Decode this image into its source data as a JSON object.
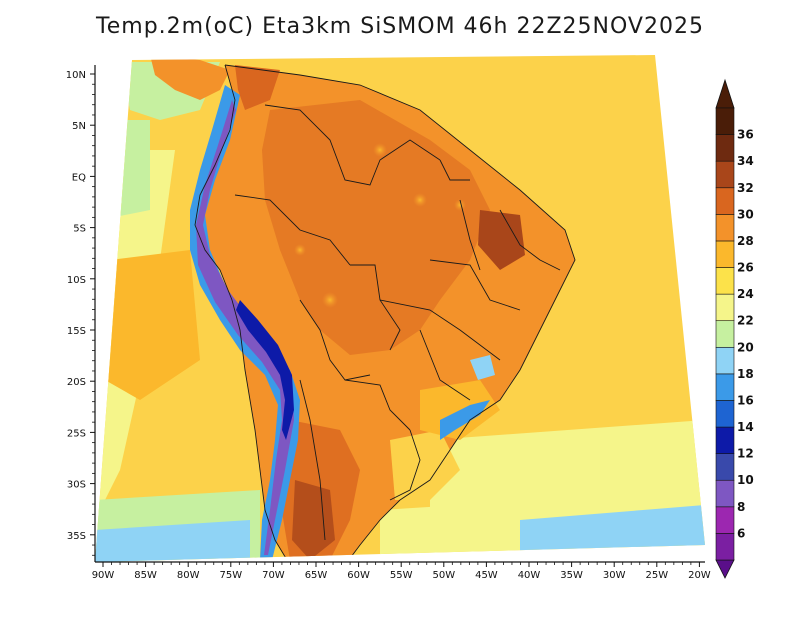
{
  "title": "Temp.2m(oC) Eta3km SiSMOM 46h 22Z25NOV2025",
  "lat_labels": [
    "10N",
    "5N",
    "EQ",
    "5S",
    "10S",
    "15S",
    "20S",
    "25S",
    "30S",
    "35S"
  ],
  "lon_labels": [
    "90W",
    "85W",
    "80W",
    "75W",
    "70W",
    "65W",
    "60W",
    "55W",
    "50W",
    "45W",
    "40W",
    "35W",
    "30W",
    "25W",
    "20W"
  ],
  "colorbar": {
    "levels": [
      {
        "label": "6",
        "color": "#7b1fa2"
      },
      {
        "label": "8",
        "color": "#9c27b0"
      },
      {
        "label": "10",
        "color": "#7e57c2"
      },
      {
        "label": "12",
        "color": "#3949ab"
      },
      {
        "label": "14",
        "color": "#0d1aa8"
      },
      {
        "label": "16",
        "color": "#1e64d2"
      },
      {
        "label": "18",
        "color": "#3b9ae8"
      },
      {
        "label": "20",
        "color": "#8fd3f5"
      },
      {
        "label": "22",
        "color": "#c6f0a0"
      },
      {
        "label": "24",
        "color": "#f5f58a"
      },
      {
        "label": "26",
        "color": "#fce24a"
      },
      {
        "label": "28",
        "color": "#fbb82c"
      },
      {
        "label": "30",
        "color": "#f3922a"
      },
      {
        "label": "32",
        "color": "#d9661f"
      },
      {
        "label": "34",
        "color": "#a9461a"
      },
      {
        "label": "36",
        "color": "#6e2a10"
      }
    ],
    "low_color": "#5a0f8a",
    "high_color": "#4a1d08"
  },
  "colors": {
    "ocean_warm": "#fcd24a",
    "ocean_mild": "#f5f58a",
    "ocean_cool": "#c6f0a0",
    "ocean_cold": "#8fd3f5",
    "land_hot": "#f3922a",
    "land_very_hot": "#d9661f",
    "andes": "#3b9ae8",
    "andes_high": "#7e57c2",
    "border": "#1a1a1a"
  }
}
